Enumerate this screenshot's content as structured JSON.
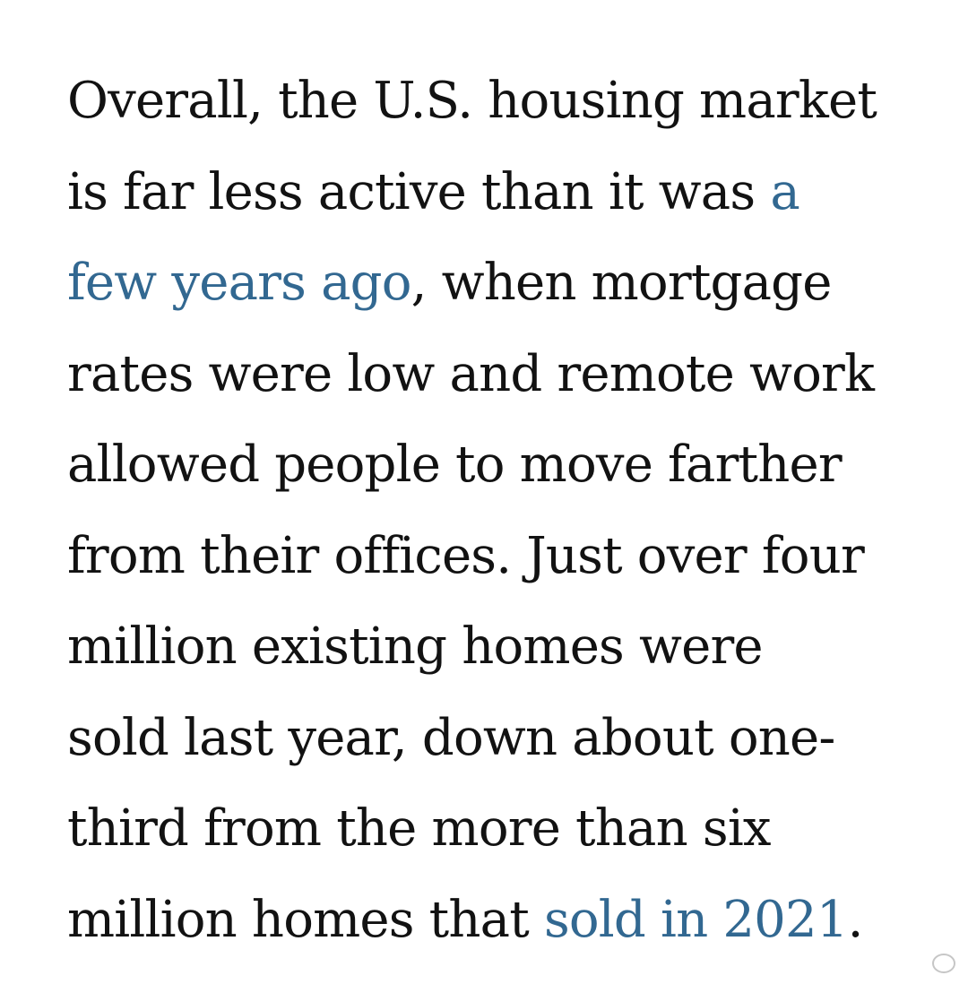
{
  "article": {
    "lines": [
      {
        "text": "Overall, the U.S. housing market"
      },
      {
        "text": "is far less active than it was ",
        "link": "a"
      },
      {
        "link": "few years ago",
        "text": ", when mortgage"
      },
      {
        "text": "rates were low and remote work"
      },
      {
        "text": "allowed people to move farther"
      },
      {
        "text": "from their offices. Just over four"
      },
      {
        "text": "million existing homes were"
      },
      {
        "text": "sold last year, down about one-"
      },
      {
        "text": "third from the more than six"
      },
      {
        "text": "million homes that ",
        "link": "sold in 2021",
        "after": "."
      }
    ]
  },
  "colors": {
    "text": "#121212",
    "link": "#326891"
  },
  "watermark": {
    "icon": "weibo-logo-icon"
  }
}
